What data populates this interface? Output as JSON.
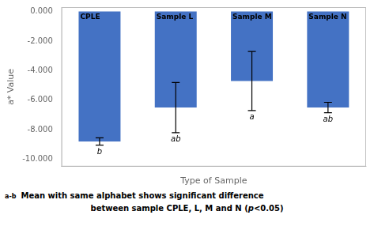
{
  "chart_data": {
    "type": "bar",
    "categories": [
      "CPLE",
      "Sample L",
      "Sample M",
      "Sample N"
    ],
    "values": [
      -8.8,
      -6.5,
      -4.7,
      -6.5
    ],
    "errors": [
      0.25,
      1.7,
      2.0,
      0.35
    ],
    "sig_labels": [
      "b",
      "ab",
      "a",
      "ab"
    ],
    "color": "#4472C4",
    "ylabel": "a* Value",
    "xlabel": "Type of Sample",
    "ylim": [
      -10.5,
      0.3
    ],
    "yticks": [
      {
        "value": 0.0,
        "label": "0.000"
      },
      {
        "value": -2.0,
        "label": "-2.000"
      },
      {
        "value": -4.0,
        "label": "-4.000"
      },
      {
        "value": -6.0,
        "label": "-6.000"
      },
      {
        "value": -8.0,
        "label": "-8.000"
      },
      {
        "value": -10.0,
        "label": "-10.000"
      }
    ],
    "grid": false,
    "tick_labels": "y",
    "annotations": [
      "a-b",
      "Mean with same alphabet shows significant difference",
      "between sample CPLE, L, M and N (",
      "p",
      "<0.05)"
    ]
  }
}
